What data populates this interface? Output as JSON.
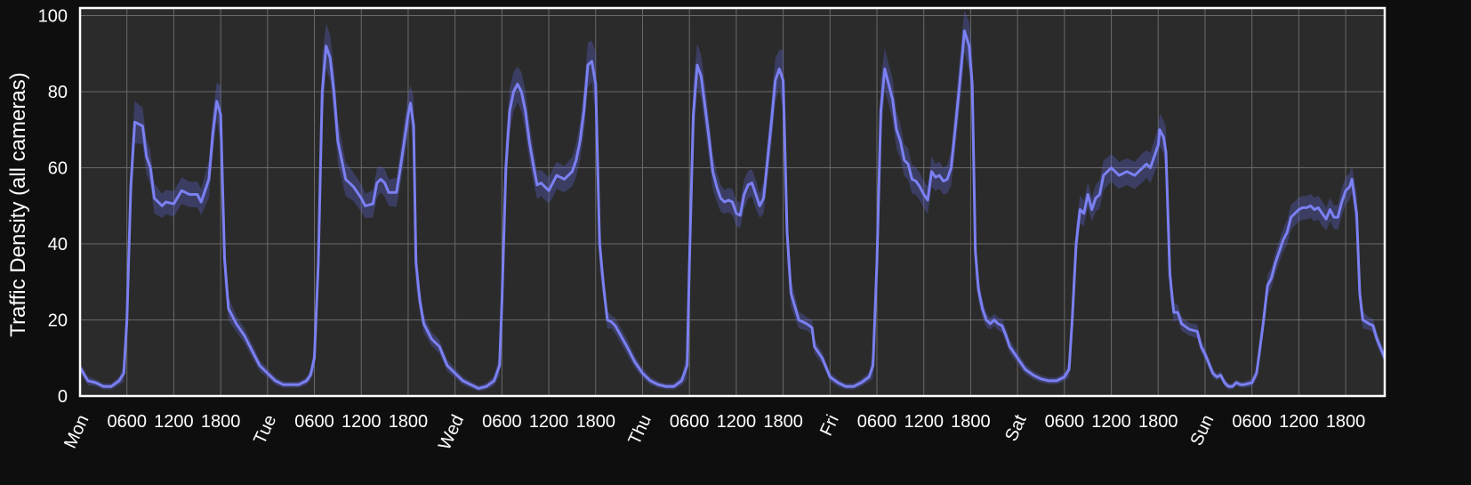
{
  "chart_data": {
    "type": "line",
    "title": "",
    "xlabel": "",
    "ylabel": "Traffic Density (all cameras)",
    "ylim": [
      0,
      102
    ],
    "xlim": [
      0,
      167
    ],
    "yticks": [
      0,
      20,
      40,
      60,
      80,
      100
    ],
    "grid": true,
    "legend": "none",
    "colors": {
      "background": "#0e0e0e",
      "plot_bg": "#2b2b2b",
      "grid": "#6a6a6a",
      "frame": "#ffffff",
      "line": "#7b80f2",
      "band": "#5a5ec8",
      "text": "#ffffff"
    },
    "x_ticks": [
      {
        "x": 0,
        "label": "Mon",
        "rotated": true
      },
      {
        "x": 6,
        "label": "0600",
        "rotated": false
      },
      {
        "x": 12,
        "label": "1200",
        "rotated": false
      },
      {
        "x": 18,
        "label": "1800",
        "rotated": false
      },
      {
        "x": 24,
        "label": "Tue",
        "rotated": true
      },
      {
        "x": 30,
        "label": "0600",
        "rotated": false
      },
      {
        "x": 36,
        "label": "1200",
        "rotated": false
      },
      {
        "x": 42,
        "label": "1800",
        "rotated": false
      },
      {
        "x": 48,
        "label": "Wed",
        "rotated": true
      },
      {
        "x": 54,
        "label": "0600",
        "rotated": false
      },
      {
        "x": 60,
        "label": "1200",
        "rotated": false
      },
      {
        "x": 66,
        "label": "1800",
        "rotated": false
      },
      {
        "x": 72,
        "label": "Thu",
        "rotated": true
      },
      {
        "x": 78,
        "label": "0600",
        "rotated": false
      },
      {
        "x": 84,
        "label": "1200",
        "rotated": false
      },
      {
        "x": 90,
        "label": "1800",
        "rotated": false
      },
      {
        "x": 96,
        "label": "Fri",
        "rotated": true
      },
      {
        "x": 102,
        "label": "0600",
        "rotated": false
      },
      {
        "x": 108,
        "label": "1200",
        "rotated": false
      },
      {
        "x": 114,
        "label": "1800",
        "rotated": false
      },
      {
        "x": 120,
        "label": "Sat",
        "rotated": true
      },
      {
        "x": 126,
        "label": "0600",
        "rotated": false
      },
      {
        "x": 132,
        "label": "1200",
        "rotated": false
      },
      {
        "x": 138,
        "label": "1800",
        "rotated": false
      },
      {
        "x": 144,
        "label": "Sun",
        "rotated": true
      },
      {
        "x": 150,
        "label": "0600",
        "rotated": false
      },
      {
        "x": 156,
        "label": "1200",
        "rotated": false
      },
      {
        "x": 162,
        "label": "1800",
        "rotated": false
      }
    ],
    "series": [
      {
        "points": [
          [
            0,
            7.5
          ],
          [
            1,
            4
          ],
          [
            2,
            3.5
          ],
          [
            3,
            2.5
          ],
          [
            4,
            2.5
          ],
          [
            5,
            4
          ],
          [
            5.6,
            6
          ],
          [
            6,
            20
          ],
          [
            6.5,
            55
          ],
          [
            7,
            72
          ],
          [
            8,
            71
          ],
          [
            8.5,
            63
          ],
          [
            9,
            60
          ],
          [
            9.5,
            52
          ],
          [
            10.5,
            50
          ],
          [
            11,
            51
          ],
          [
            12,
            50.5
          ],
          [
            13,
            54
          ],
          [
            14,
            53
          ],
          [
            15,
            53
          ],
          [
            15.5,
            51
          ],
          [
            16.5,
            57
          ],
          [
            17,
            69
          ],
          [
            17.5,
            77.5
          ],
          [
            18,
            74
          ],
          [
            18.5,
            36
          ],
          [
            19,
            23
          ],
          [
            20,
            19
          ],
          [
            21,
            16
          ],
          [
            22,
            12
          ],
          [
            23,
            8
          ],
          [
            24,
            6
          ],
          [
            25,
            4
          ],
          [
            26,
            3
          ],
          [
            27,
            3
          ],
          [
            28,
            3
          ],
          [
            29,
            4
          ],
          [
            29.5,
            5.5
          ],
          [
            30,
            10
          ],
          [
            30.5,
            35
          ],
          [
            31,
            80
          ],
          [
            31.5,
            92
          ],
          [
            32,
            89
          ],
          [
            32.5,
            80
          ],
          [
            33,
            67
          ],
          [
            34,
            57
          ],
          [
            35,
            55
          ],
          [
            36,
            52
          ],
          [
            36.5,
            50
          ],
          [
            37.5,
            50.5
          ],
          [
            38,
            56
          ],
          [
            38.5,
            57
          ],
          [
            39,
            56
          ],
          [
            39.5,
            53.5
          ],
          [
            40.5,
            53.5
          ],
          [
            41,
            60
          ],
          [
            41.5,
            67
          ],
          [
            42,
            74
          ],
          [
            42.3,
            77
          ],
          [
            42.7,
            71
          ],
          [
            43,
            35
          ],
          [
            43.5,
            25
          ],
          [
            44,
            19
          ],
          [
            45,
            15
          ],
          [
            46,
            13
          ],
          [
            47,
            8
          ],
          [
            48,
            6
          ],
          [
            49,
            4
          ],
          [
            50,
            3
          ],
          [
            51,
            2
          ],
          [
            52,
            2.5
          ],
          [
            53,
            4
          ],
          [
            53.7,
            8
          ],
          [
            54,
            25
          ],
          [
            54.5,
            60
          ],
          [
            55,
            75
          ],
          [
            55.5,
            80
          ],
          [
            56,
            82
          ],
          [
            56.5,
            80
          ],
          [
            57,
            75
          ],
          [
            57.5,
            67
          ],
          [
            58,
            61
          ],
          [
            58.5,
            55.5
          ],
          [
            59,
            56
          ],
          [
            59.5,
            55
          ],
          [
            60,
            54
          ],
          [
            60.5,
            56
          ],
          [
            61,
            58
          ],
          [
            62,
            57
          ],
          [
            62.5,
            58
          ],
          [
            63,
            59
          ],
          [
            63.5,
            62
          ],
          [
            64,
            67
          ],
          [
            64.5,
            75
          ],
          [
            65,
            87
          ],
          [
            65.5,
            88
          ],
          [
            66,
            82
          ],
          [
            66.5,
            40
          ],
          [
            67,
            29
          ],
          [
            67.5,
            20
          ],
          [
            68,
            19.5
          ],
          [
            68.5,
            18.5
          ],
          [
            70,
            13
          ],
          [
            71,
            9
          ],
          [
            72,
            6
          ],
          [
            73,
            4
          ],
          [
            74,
            3
          ],
          [
            75,
            2.5
          ],
          [
            76,
            2.5
          ],
          [
            77,
            4
          ],
          [
            77.7,
            8
          ],
          [
            78,
            35
          ],
          [
            78.5,
            74
          ],
          [
            79,
            87
          ],
          [
            79.5,
            84
          ],
          [
            80,
            76
          ],
          [
            80.5,
            68
          ],
          [
            81,
            59
          ],
          [
            81.5,
            55
          ],
          [
            82,
            52
          ],
          [
            82.5,
            51
          ],
          [
            83,
            51.5
          ],
          [
            83.5,
            51
          ],
          [
            84,
            48
          ],
          [
            84.5,
            47.5
          ],
          [
            85,
            53
          ],
          [
            85.5,
            55.5
          ],
          [
            86,
            56
          ],
          [
            86.5,
            53
          ],
          [
            87,
            50
          ],
          [
            87.5,
            52
          ],
          [
            88,
            62
          ],
          [
            88.5,
            72
          ],
          [
            89,
            83
          ],
          [
            89.5,
            86
          ],
          [
            90,
            83
          ],
          [
            90.5,
            43
          ],
          [
            91,
            27
          ],
          [
            92,
            20
          ],
          [
            93,
            19
          ],
          [
            93.7,
            18
          ],
          [
            94,
            13
          ],
          [
            95,
            10
          ],
          [
            95.5,
            7.5
          ],
          [
            96,
            5
          ],
          [
            97,
            3.5
          ],
          [
            98,
            2.5
          ],
          [
            99,
            2.5
          ],
          [
            100,
            3.5
          ],
          [
            101,
            5
          ],
          [
            101.5,
            8
          ],
          [
            102,
            35
          ],
          [
            102.5,
            75
          ],
          [
            103,
            86
          ],
          [
            103.5,
            82
          ],
          [
            104,
            78
          ],
          [
            104.5,
            70
          ],
          [
            105,
            67
          ],
          [
            105.5,
            62
          ],
          [
            106,
            61
          ],
          [
            106.5,
            57
          ],
          [
            107,
            56.5
          ],
          [
            107.5,
            55
          ],
          [
            108,
            53
          ],
          [
            108.5,
            51.5
          ],
          [
            109,
            59
          ],
          [
            109.5,
            57.5
          ],
          [
            110,
            58
          ],
          [
            110.5,
            56.5
          ],
          [
            111,
            57
          ],
          [
            111.5,
            60
          ],
          [
            112,
            70
          ],
          [
            112.5,
            80
          ],
          [
            113,
            91
          ],
          [
            113.2,
            96
          ],
          [
            113.8,
            92
          ],
          [
            114.2,
            82
          ],
          [
            114.6,
            38
          ],
          [
            115,
            28
          ],
          [
            115.5,
            23
          ],
          [
            116,
            20
          ],
          [
            116.5,
            19
          ],
          [
            117,
            20
          ],
          [
            117.5,
            19
          ],
          [
            118,
            18.5
          ],
          [
            118.5,
            16
          ],
          [
            119,
            13
          ],
          [
            120,
            10
          ],
          [
            121,
            7
          ],
          [
            122,
            5.5
          ],
          [
            123,
            4.5
          ],
          [
            124,
            4
          ],
          [
            125,
            4
          ],
          [
            126,
            5
          ],
          [
            126.6,
            7
          ],
          [
            127,
            20
          ],
          [
            127.5,
            40
          ],
          [
            128,
            49
          ],
          [
            128.5,
            48
          ],
          [
            129,
            53
          ],
          [
            129.5,
            49
          ],
          [
            130,
            52
          ],
          [
            130.5,
            53
          ],
          [
            131,
            58
          ],
          [
            131.5,
            59
          ],
          [
            132,
            60
          ],
          [
            132.5,
            59
          ],
          [
            133,
            58
          ],
          [
            134,
            59
          ],
          [
            135,
            58
          ],
          [
            136,
            60
          ],
          [
            136.5,
            61
          ],
          [
            137,
            60
          ],
          [
            138,
            66
          ],
          [
            138.2,
            70
          ],
          [
            138.7,
            68
          ],
          [
            139,
            64
          ],
          [
            139.5,
            32
          ],
          [
            140,
            22
          ],
          [
            140.5,
            22
          ],
          [
            141,
            19
          ],
          [
            142,
            17.5
          ],
          [
            143,
            17
          ],
          [
            143.5,
            13
          ],
          [
            144,
            11
          ],
          [
            144.5,
            8.5
          ],
          [
            145,
            6
          ],
          [
            145.5,
            5
          ],
          [
            146,
            5.5
          ],
          [
            146.5,
            3.5
          ],
          [
            147,
            2.5
          ],
          [
            147.5,
            2.5
          ],
          [
            148,
            3.5
          ],
          [
            148.5,
            3
          ],
          [
            149,
            3
          ],
          [
            150,
            3.5
          ],
          [
            150.6,
            6
          ],
          [
            151,
            12
          ],
          [
            151.5,
            20
          ],
          [
            152,
            29
          ],
          [
            152.5,
            31
          ],
          [
            153,
            35
          ],
          [
            153.5,
            38
          ],
          [
            154,
            41
          ],
          [
            154.5,
            43
          ],
          [
            155,
            47
          ],
          [
            155.5,
            48
          ],
          [
            156,
            49
          ],
          [
            156.5,
            49.5
          ],
          [
            157,
            49.5
          ],
          [
            157.5,
            50
          ],
          [
            158,
            49
          ],
          [
            158.5,
            49.5
          ],
          [
            159,
            48
          ],
          [
            159.5,
            46.5
          ],
          [
            160,
            49
          ],
          [
            160.5,
            47
          ],
          [
            161,
            47
          ],
          [
            161.5,
            51
          ],
          [
            162,
            54
          ],
          [
            162.5,
            55
          ],
          [
            162.8,
            57
          ],
          [
            163,
            54
          ],
          [
            163.4,
            48
          ],
          [
            163.8,
            27
          ],
          [
            164.2,
            20
          ],
          [
            165,
            19
          ],
          [
            165.5,
            18.5
          ],
          [
            166,
            15
          ],
          [
            166.5,
            12.5
          ],
          [
            167,
            10
          ],
          [
            167.5,
            8.5
          ],
          [
            168,
            7
          ]
        ],
        "band_half_width_peak": 5
      }
    ]
  }
}
